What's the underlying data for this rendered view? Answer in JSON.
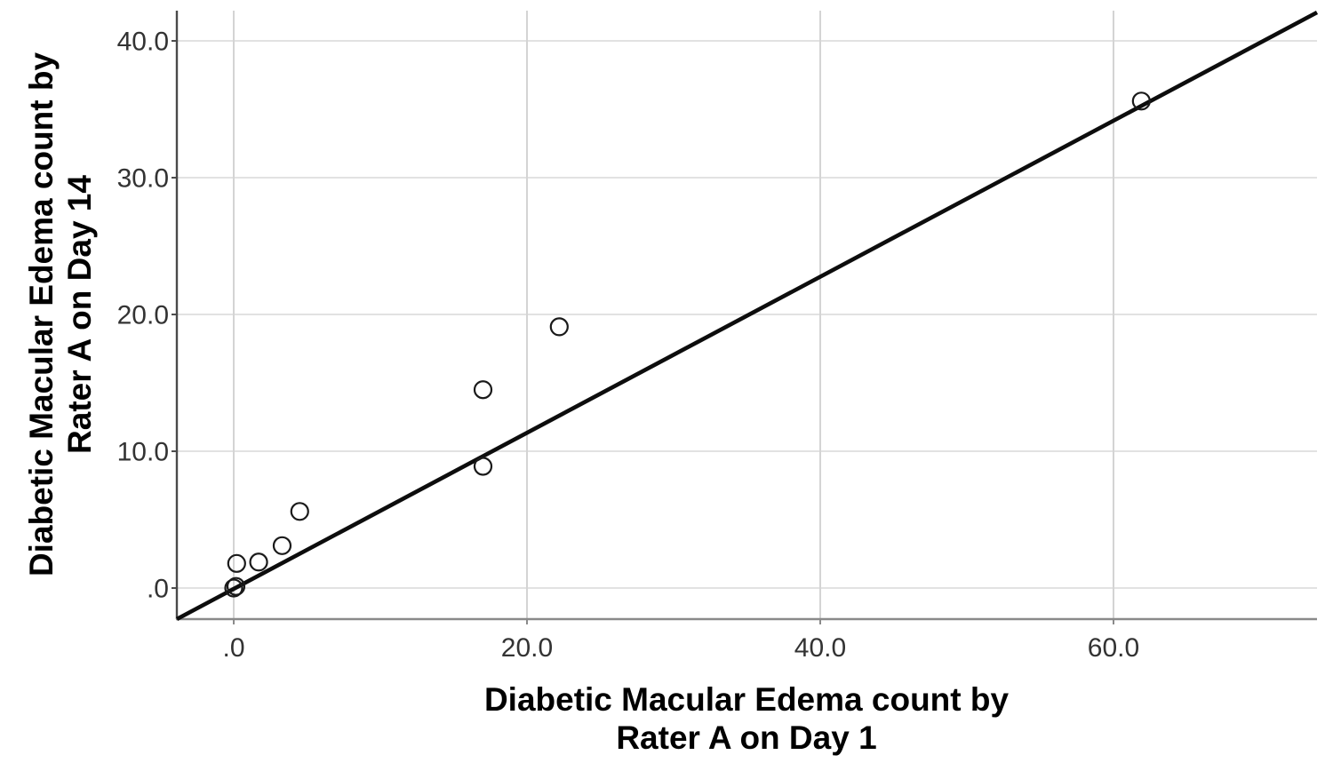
{
  "chart_data": {
    "type": "scatter",
    "title": "",
    "xlabel_lines": [
      "Diabetic Macular Edema count by",
      "Rater A on Day 1"
    ],
    "ylabel_lines": [
      "Diabetic Macular Edema count by",
      "Rater A on Day 14"
    ],
    "x_ticks": [
      {
        "value": 0,
        "label": ".0"
      },
      {
        "value": 20,
        "label": "20.0"
      },
      {
        "value": 40,
        "label": "40.0"
      },
      {
        "value": 60,
        "label": "60.0"
      }
    ],
    "y_ticks": [
      {
        "value": 0,
        "label": ".0"
      },
      {
        "value": 10,
        "label": "10.0"
      },
      {
        "value": 20,
        "label": "20.0"
      },
      {
        "value": 30,
        "label": "30.0"
      },
      {
        "value": 40,
        "label": "40.0"
      }
    ],
    "xlim": [
      -3.88,
      73.88
    ],
    "ylim": [
      -2.27,
      42.21
    ],
    "grid": true,
    "legend": "none",
    "points": [
      {
        "x": 0.0,
        "y": 0.0
      },
      {
        "x": 0.15,
        "y": 0.12
      },
      {
        "x": 0.2,
        "y": 1.8
      },
      {
        "x": 1.7,
        "y": 1.9
      },
      {
        "x": 3.3,
        "y": 3.1
      },
      {
        "x": 4.5,
        "y": 5.6
      },
      {
        "x": 17.0,
        "y": 14.5
      },
      {
        "x": 17.0,
        "y": 8.9
      },
      {
        "x": 22.2,
        "y": 19.1
      },
      {
        "x": 61.9,
        "y": 35.6
      }
    ],
    "reference_line": {
      "x1": -3.88,
      "y1": -2.27,
      "x2": 73.88,
      "y2": 42.08
    },
    "colors": {
      "marker_stroke": "#1a1a1a",
      "line": "#0d0d0d",
      "grid_horizontal": "#e2e2e2",
      "grid_vertical": "#d4d4d4",
      "axis_y": "#4a4a4a",
      "axis_x": "#8a8a8a",
      "tick_label": "#333333",
      "title": "#000000"
    }
  }
}
